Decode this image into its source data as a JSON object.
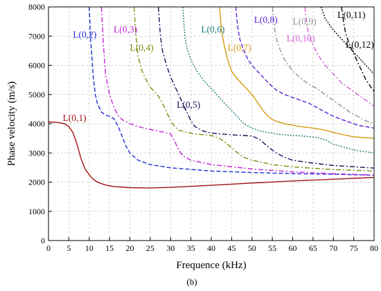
{
  "chart_data": {
    "type": "line",
    "xlabel": "Frequence (kHz)",
    "ylabel": "Phase velocity (m/s)",
    "panel_label": "(b)",
    "xlim": [
      0,
      80
    ],
    "ylim": [
      0,
      8000
    ],
    "xticks": [
      0,
      5,
      10,
      15,
      20,
      25,
      30,
      35,
      40,
      45,
      50,
      55,
      60,
      65,
      70,
      75,
      80
    ],
    "yticks": [
      0,
      1000,
      2000,
      3000,
      4000,
      5000,
      6000,
      7000,
      8000
    ],
    "grid": true,
    "series": [
      {
        "name": "L(0,1)",
        "color": "#a01010",
        "dash": "solid",
        "x": [
          0,
          2,
          4,
          5,
          6,
          7,
          8,
          9,
          10,
          11,
          12,
          14,
          16,
          20,
          25,
          30,
          40,
          50,
          60,
          70,
          80
        ],
        "y": [
          4060,
          4050,
          4000,
          3900,
          3700,
          3300,
          2800,
          2450,
          2250,
          2100,
          2000,
          1900,
          1850,
          1810,
          1800,
          1820,
          1890,
          1970,
          2040,
          2100,
          2160
        ]
      },
      {
        "name": "L(0,2)",
        "color": "#1c2bd6",
        "dash": "dashed",
        "x": [
          10,
          10.3,
          10.7,
          11,
          11.5,
          12,
          13,
          14,
          15,
          16,
          17,
          18,
          19,
          20,
          22,
          25,
          30,
          40,
          50,
          60,
          70,
          80
        ],
        "y": [
          8000,
          7000,
          6200,
          5600,
          5000,
          4700,
          4400,
          4300,
          4250,
          4180,
          3950,
          3600,
          3250,
          3000,
          2750,
          2600,
          2490,
          2380,
          2330,
          2290,
          2270,
          2240
        ]
      },
      {
        "name": "L(0,3)",
        "color": "#c41fd6",
        "dash": "dashdot",
        "x": [
          13,
          13.5,
          14,
          15,
          16,
          17,
          18,
          20,
          22,
          25,
          28,
          30,
          31,
          32,
          33,
          35,
          40,
          50,
          60,
          70,
          80
        ],
        "y": [
          8000,
          6700,
          5700,
          5000,
          4600,
          4300,
          4150,
          4000,
          3900,
          3800,
          3720,
          3650,
          3400,
          3100,
          2900,
          2750,
          2600,
          2450,
          2350,
          2290,
          2240
        ]
      },
      {
        "name": "L(0,4)",
        "color": "#808a10",
        "dash": "dashdot",
        "x": [
          21,
          21.5,
          22,
          23,
          24,
          25,
          26,
          27,
          28,
          29,
          30,
          31,
          32,
          34,
          36,
          40,
          42,
          44,
          46,
          48,
          50,
          55,
          60,
          70,
          80
        ],
        "y": [
          8000,
          7000,
          6300,
          5800,
          5500,
          5250,
          5100,
          4950,
          4700,
          4400,
          4100,
          3900,
          3780,
          3700,
          3650,
          3600,
          3500,
          3300,
          3050,
          2850,
          2750,
          2600,
          2520,
          2430,
          2380
        ]
      },
      {
        "name": "L(0,5)",
        "color": "#121258",
        "dash": "dashdot",
        "x": [
          27,
          27.5,
          28,
          29,
          30,
          31,
          32,
          33,
          34,
          35,
          36,
          38,
          40,
          45,
          50,
          52,
          54,
          56,
          58,
          60,
          65,
          70,
          80
        ],
        "y": [
          8000,
          7000,
          6500,
          6000,
          5600,
          5300,
          5000,
          4700,
          4400,
          4100,
          3900,
          3750,
          3680,
          3620,
          3580,
          3450,
          3200,
          3000,
          2850,
          2750,
          2650,
          2570,
          2480
        ]
      },
      {
        "name": "L(0,6)",
        "color": "#1e7c7c",
        "dash": "dotted",
        "x": [
          33,
          33.5,
          34,
          35,
          36,
          37,
          38,
          40,
          42,
          44,
          46,
          48,
          50,
          52,
          54,
          56,
          58,
          60,
          62,
          64,
          66,
          68,
          70,
          75,
          80
        ],
        "y": [
          8000,
          7000,
          6600,
          6200,
          5900,
          5700,
          5500,
          5200,
          4900,
          4600,
          4300,
          4000,
          3850,
          3750,
          3700,
          3650,
          3620,
          3600,
          3580,
          3560,
          3530,
          3450,
          3300,
          3100,
          3000
        ]
      },
      {
        "name": "L(0,7)",
        "color": "#d49a10",
        "dash": "solid",
        "x": [
          42,
          42.5,
          43,
          44,
          45,
          46,
          48,
          50,
          51,
          52,
          53,
          54,
          55,
          56,
          58,
          60,
          62,
          65,
          68,
          70,
          75,
          80
        ],
        "y": [
          8000,
          7200,
          6800,
          6200,
          5800,
          5600,
          5300,
          5000,
          4800,
          4600,
          4400,
          4250,
          4150,
          4080,
          4000,
          3950,
          3900,
          3850,
          3780,
          3700,
          3550,
          3500
        ]
      },
      {
        "name": "L(0,8)",
        "color": "#5b1fd6",
        "dash": "dashed",
        "x": [
          46,
          46.5,
          47,
          48,
          49,
          50,
          52,
          54,
          56,
          58,
          60,
          62,
          64,
          66,
          68,
          70,
          72,
          74,
          76,
          78,
          80
        ],
        "y": [
          8000,
          7300,
          6900,
          6500,
          6200,
          6000,
          5700,
          5400,
          5150,
          5000,
          4900,
          4800,
          4700,
          4550,
          4400,
          4250,
          4150,
          4050,
          3950,
          3900,
          3850
        ]
      },
      {
        "name": "L(0,9)",
        "color": "#8f8f8f",
        "dash": "dashdot",
        "x": [
          55,
          55.5,
          56,
          57,
          58,
          60,
          62,
          64,
          66,
          68,
          70,
          72,
          74,
          76,
          78,
          80
        ],
        "y": [
          8000,
          7300,
          6900,
          6500,
          6200,
          5800,
          5550,
          5350,
          5200,
          5000,
          4800,
          4600,
          4400,
          4250,
          4100,
          4000
        ]
      },
      {
        "name": "L(0,10)",
        "color": "#d25fd6",
        "dash": "dashdot",
        "x": [
          63,
          63.5,
          64,
          65,
          66,
          67,
          68,
          70,
          72,
          74,
          76,
          78,
          80
        ],
        "y": [
          8000,
          7400,
          7000,
          6700,
          6400,
          6200,
          6000,
          5700,
          5400,
          5200,
          5000,
          4800,
          4600
        ]
      },
      {
        "name": "L(0,11)",
        "color": "#000000",
        "dash": "dotted",
        "x": [
          67,
          67.5,
          68,
          69,
          70,
          72,
          74,
          76,
          78,
          80
        ],
        "y": [
          8000,
          7800,
          7600,
          7400,
          7200,
          6900,
          6600,
          6300,
          6000,
          5700
        ]
      },
      {
        "name": "L(0,12)",
        "color": "#000000",
        "dash": "dashdot",
        "x": [
          72,
          72.5,
          73,
          74,
          75,
          76,
          77,
          78,
          79,
          80
        ],
        "y": [
          8000,
          7500,
          7100,
          6700,
          6400,
          6100,
          5800,
          5500,
          5300,
          5100
        ]
      }
    ],
    "label_positions": [
      {
        "x": 3.5,
        "y": 4100
      },
      {
        "x": 6,
        "y": 6950
      },
      {
        "x": 16,
        "y": 7120
      },
      {
        "x": 20,
        "y": 6500
      },
      {
        "x": 31.5,
        "y": 4550
      },
      {
        "x": 37.5,
        "y": 7120
      },
      {
        "x": 44,
        "y": 6500
      },
      {
        "x": 50.5,
        "y": 7450
      },
      {
        "x": 60,
        "y": 7400
      },
      {
        "x": 58.5,
        "y": 6820
      },
      {
        "x": 71,
        "y": 7620
      },
      {
        "x": 73,
        "y": 6600
      }
    ]
  }
}
